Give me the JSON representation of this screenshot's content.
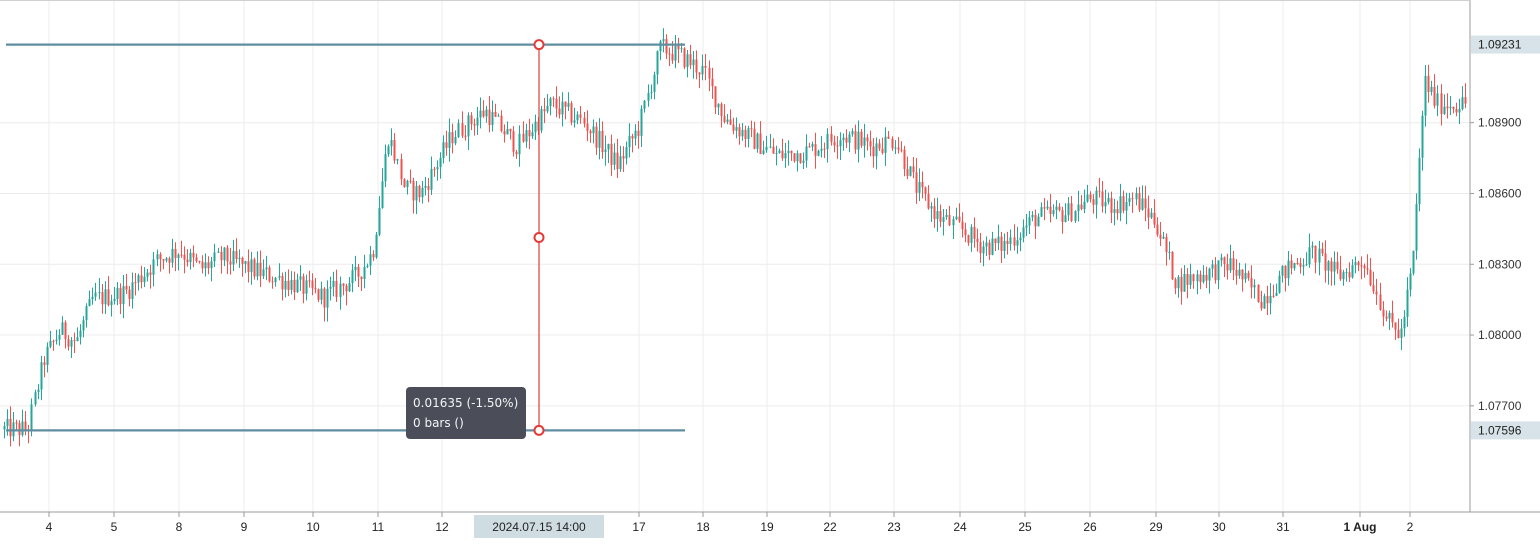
{
  "chart_data": {
    "type": "candlestick",
    "instrument": "EURUSD",
    "x_tick_labels": [
      "4",
      "5",
      "8",
      "9",
      "10",
      "11",
      "12",
      "17",
      "18",
      "19",
      "22",
      "23",
      "24",
      "25",
      "26",
      "29",
      "30",
      "31",
      "1 Aug",
      "2"
    ],
    "crosshair_time_label": "2024.07.15 14:00",
    "y_tick_labels": [
      "1.08900",
      "1.08600",
      "1.08300",
      "1.08000",
      "1.07700"
    ],
    "ylim": [
      1.0725,
      1.0942
    ],
    "highlighted_price_labels": [
      "1.09231",
      "1.07596"
    ],
    "horizontal_levels": [
      1.09231,
      1.07596
    ],
    "measurement": {
      "line1": "0.01635 (-1.50%)",
      "line2": "0 bars ()"
    },
    "grid": true,
    "colors": {
      "up_candle": "#26a69a",
      "down_candle": "#ef5350",
      "level_line": "#5f8ea0",
      "measure_line": "#e53935",
      "price_label_bg": "#d7e3e8",
      "time_label_bg": "#cfdde3"
    },
    "price_path": [
      [
        "4",
        1.076
      ],
      [
        "4",
        1.079
      ],
      [
        "4",
        1.0802
      ],
      [
        "4",
        1.0797
      ],
      [
        "5",
        1.0815
      ],
      [
        "5",
        1.0818
      ],
      [
        "8",
        1.0832
      ],
      [
        "8",
        1.0836
      ],
      [
        "8",
        1.0828
      ],
      [
        "9",
        1.0833
      ],
      [
        "9",
        1.0827
      ],
      [
        "10",
        1.0822
      ],
      [
        "10",
        1.0816
      ],
      [
        "11",
        1.0825
      ],
      [
        "11",
        1.0835
      ],
      [
        "11",
        1.0885
      ],
      [
        "11",
        1.0862
      ],
      [
        "12",
        1.086
      ],
      [
        "12",
        1.0885
      ],
      [
        "12",
        1.0895
      ],
      [
        "15",
        1.088
      ],
      [
        "15",
        1.0898
      ],
      [
        "15",
        1.089
      ],
      [
        "17",
        1.0872
      ],
      [
        "17",
        1.0888
      ],
      [
        "17",
        1.0922
      ],
      [
        "18",
        1.0918
      ],
      [
        "18",
        1.0912
      ],
      [
        "18",
        1.0892
      ],
      [
        "19",
        1.0885
      ],
      [
        "19",
        1.0876
      ],
      [
        "22",
        1.0878
      ],
      [
        "22",
        1.0885
      ],
      [
        "23",
        1.088
      ],
      [
        "23",
        1.0883
      ],
      [
        "23",
        1.0862
      ],
      [
        "24",
        1.085
      ],
      [
        "24",
        1.0845
      ],
      [
        "24",
        1.0838
      ],
      [
        "25",
        1.0838
      ],
      [
        "25",
        1.085
      ],
      [
        "26",
        1.0852
      ],
      [
        "26",
        1.0858
      ],
      [
        "26",
        1.0855
      ],
      [
        "29",
        1.0858
      ],
      [
        "29",
        1.0848
      ],
      [
        "29",
        1.0822
      ],
      [
        "30",
        1.0825
      ],
      [
        "30",
        1.083
      ],
      [
        "31",
        1.0815
      ],
      [
        "31",
        1.0828
      ],
      [
        "31",
        1.0835
      ],
      [
        "1 Aug",
        1.0825
      ],
      [
        "1 Aug",
        1.0832
      ],
      [
        "2",
        1.0805
      ],
      [
        "2",
        1.08
      ],
      [
        "2",
        1.083
      ],
      [
        "2",
        1.0908
      ],
      [
        "2",
        1.0898
      ]
    ]
  }
}
